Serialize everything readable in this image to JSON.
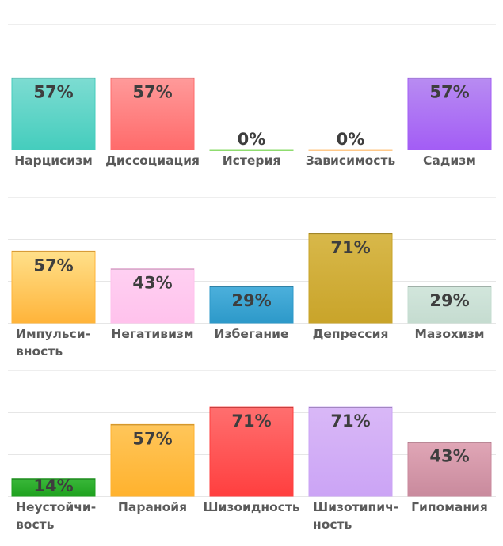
{
  "chart_data": [
    {
      "type": "bar",
      "categories": [
        "Нарцисизм",
        "Диссоциация",
        "Истерия",
        "Зависимость",
        "Садизм"
      ],
      "category_lines": [
        [
          "Нарцисизм"
        ],
        [
          "Диссоциация"
        ],
        [
          "Истерия"
        ],
        [
          "Зависимость"
        ],
        [
          "Садизм"
        ]
      ],
      "values": [
        57,
        57,
        0,
        0,
        57
      ],
      "value_labels": [
        "57%",
        "57%",
        "0%",
        "0%",
        "57%"
      ],
      "colors": [
        [
          "#7ddcd2",
          "#45cdbd"
        ],
        [
          "#ff9a9a",
          "#ff6b6b"
        ],
        [
          "#a8e88a",
          "#8fdc6f"
        ],
        [
          "#ffd9a8",
          "#ffc98a"
        ],
        [
          "#b88cf2",
          "#a35df5"
        ]
      ],
      "ylim": [
        0,
        100
      ],
      "grid": true
    },
    {
      "type": "bar",
      "categories": [
        "Импульсивность",
        "Негативизм",
        "Избегание",
        "Депрессия",
        "Мазохизм"
      ],
      "category_lines": [
        [
          "Импульси-",
          "вность"
        ],
        [
          "Негативизм"
        ],
        [
          "Избегание"
        ],
        [
          "Депрессия"
        ],
        [
          "Мазохизм"
        ]
      ],
      "values": [
        57,
        43,
        29,
        71,
        29
      ],
      "value_labels": [
        "57%",
        "43%",
        "29%",
        "71%",
        "29%"
      ],
      "colors": [
        [
          "#ffe08a",
          "#ffb43a"
        ],
        [
          "#ffd0f2",
          "#ffc2ec"
        ],
        [
          "#4cb0dc",
          "#2d99c9"
        ],
        [
          "#d8b84a",
          "#c9a42a"
        ],
        [
          "#d2e6dc",
          "#c5dcd0"
        ]
      ],
      "ylim": [
        0,
        100
      ],
      "grid": true
    },
    {
      "type": "bar",
      "categories": [
        "Неустойчивость",
        "Паранойя",
        "Шизоидность",
        "Шизотипичность",
        "Гипомания"
      ],
      "category_lines": [
        [
          "Неустойчи-",
          "вость"
        ],
        [
          "Паранойя"
        ],
        [
          "Шизоидность"
        ],
        [
          "Шизотипич-",
          "ность"
        ],
        [
          "Гипомания"
        ]
      ],
      "values": [
        14,
        57,
        71,
        71,
        43
      ],
      "value_labels": [
        "14%",
        "57%",
        "71%",
        "71%",
        "43%"
      ],
      "colors": [
        [
          "#3ab83a",
          "#1fa11f"
        ],
        [
          "#ffc65a",
          "#ffb22e"
        ],
        [
          "#ff6f6f",
          "#ff3f3f"
        ],
        [
          "#d9b8f7",
          "#cba4f5"
        ],
        [
          "#e0a6b6",
          "#c98a9d"
        ]
      ],
      "ylim": [
        0,
        100
      ],
      "grid": true
    }
  ]
}
